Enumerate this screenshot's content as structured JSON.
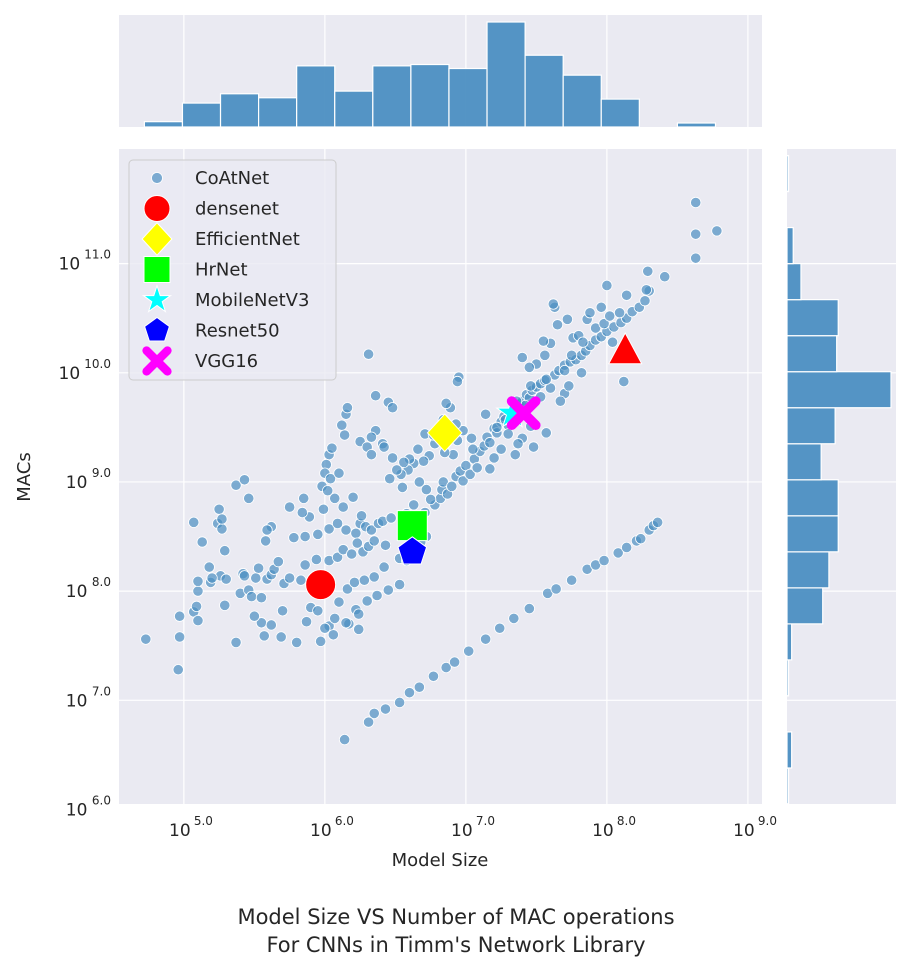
{
  "caption": {
    "line1": "Model Size VS Number of MAC operations",
    "line2": "For CNNs in Timm's Network Library"
  },
  "colors": {
    "background_panel": "#eaeaf2",
    "grid": "#ffffff",
    "scatter": "#4c8fc2",
    "hist": "#4c8fc2"
  },
  "chart_data": {
    "type": "scatter",
    "xlabel": "Model Size",
    "ylabel": "MACs",
    "xscale": "log10",
    "yscale": "log10",
    "xlim_log10": [
      4.54,
      9.1
    ],
    "ylim_log10": [
      6.05,
      12.05
    ],
    "grid": true,
    "legend_position": "upper-left",
    "x_ticks": [
      {
        "value": 5,
        "label": "10",
        "exp": "5.0"
      },
      {
        "value": 6,
        "label": "10",
        "exp": "6.0"
      },
      {
        "value": 7,
        "label": "10",
        "exp": "7.0"
      },
      {
        "value": 8,
        "label": "10",
        "exp": "8.0"
      },
      {
        "value": 9,
        "label": "10",
        "exp": "9.0"
      }
    ],
    "y_ticks": [
      {
        "value": 6,
        "label": "10",
        "exp": "6.0"
      },
      {
        "value": 7,
        "label": "10",
        "exp": "7.0"
      },
      {
        "value": 8,
        "label": "10",
        "exp": "8.0"
      },
      {
        "value": 9,
        "label": "10",
        "exp": "9.0"
      },
      {
        "value": 10,
        "label": "10",
        "exp": "10.0"
      },
      {
        "value": 11,
        "label": "10",
        "exp": "11.0"
      }
    ],
    "highlight_series": [
      {
        "name": "densenet",
        "marker": "circle",
        "color": "#ff0000",
        "log10_x": 5.97,
        "log10_y": 8.06
      },
      {
        "name": "EfficientNet",
        "marker": "diamond",
        "color": "#ffff00",
        "log10_x": 6.85,
        "log10_y": 9.45
      },
      {
        "name": "HrNet",
        "marker": "square",
        "color": "#00ff00",
        "log10_x": 6.62,
        "log10_y": 8.6
      },
      {
        "name": "MobileNetV3",
        "marker": "star",
        "color": "#00ffff",
        "log10_x": 7.33,
        "log10_y": 9.63
      },
      {
        "name": "Resnet50",
        "marker": "pentagon",
        "color": "#0000ff",
        "log10_x": 6.62,
        "log10_y": 8.36
      },
      {
        "name": "VGG16",
        "marker": "x",
        "color": "#ff00ff",
        "log10_x": 7.41,
        "log10_y": 9.63
      },
      {
        "name": "",
        "marker": "triangle",
        "color": "#ff0000",
        "log10_x": 8.13,
        "log10_y": 10.2
      }
    ],
    "legend": [
      "CoAtNet",
      "densenet",
      "EfficientNet",
      "HrNet",
      "MobileNetV3",
      "Resnet50",
      "VGG16"
    ],
    "scatter_series": {
      "name": "CoAtNet",
      "points_log10": [
        [
          4.73,
          7.56
        ],
        [
          4.96,
          7.28
        ],
        [
          4.97,
          7.58
        ],
        [
          4.97,
          7.77
        ],
        [
          5.07,
          7.81
        ],
        [
          5.09,
          7.86
        ],
        [
          5.1,
          7.73
        ],
        [
          5.1,
          8.0
        ],
        [
          5.1,
          8.09
        ],
        [
          5.19,
          8.08
        ],
        [
          5.18,
          8.22
        ],
        [
          5.26,
          8.14
        ],
        [
          5.29,
          7.87
        ],
        [
          5.3,
          8.11
        ],
        [
          5.37,
          7.53
        ],
        [
          5.4,
          7.98
        ],
        [
          5.42,
          8.16
        ],
        [
          5.43,
          8.14
        ],
        [
          5.46,
          8.01
        ],
        [
          5.48,
          7.95
        ],
        [
          5.51,
          8.12
        ],
        [
          5.53,
          8.21
        ],
        [
          5.55,
          7.94
        ],
        [
          5.59,
          8.11
        ],
        [
          5.62,
          8.15
        ],
        [
          5.64,
          8.2
        ],
        [
          5.67,
          8.27
        ],
        [
          5.71,
          8.07
        ],
        [
          5.75,
          8.12
        ],
        [
          5.83,
          8.1
        ],
        [
          5.86,
          8.24
        ],
        [
          5.94,
          8.29
        ],
        [
          5.78,
          8.49
        ],
        [
          5.86,
          8.5
        ],
        [
          5.95,
          8.52
        ],
        [
          6.03,
          8.57
        ],
        [
          6.09,
          8.62
        ],
        [
          6.15,
          8.56
        ],
        [
          6.22,
          8.53
        ],
        [
          6.25,
          8.62
        ],
        [
          6.29,
          8.59
        ],
        [
          6.33,
          8.56
        ],
        [
          6.38,
          8.62
        ],
        [
          6.41,
          8.64
        ],
        [
          6.47,
          8.67
        ],
        [
          6.03,
          8.28
        ],
        [
          6.09,
          8.31
        ],
        [
          6.13,
          8.38
        ],
        [
          6.19,
          8.34
        ],
        [
          6.23,
          8.44
        ],
        [
          6.27,
          8.36
        ],
        [
          6.31,
          8.41
        ],
        [
          6.35,
          8.46
        ],
        [
          6.43,
          8.42
        ],
        [
          6.1,
          7.9
        ],
        [
          6.16,
          8.02
        ],
        [
          6.21,
          8.08
        ],
        [
          6.28,
          8.1
        ],
        [
          6.35,
          8.13
        ],
        [
          6.42,
          8.22
        ],
        [
          6.53,
          8.3
        ],
        [
          6.63,
          8.4
        ],
        [
          6.72,
          8.5
        ],
        [
          5.87,
          7.72
        ],
        [
          5.9,
          7.85
        ],
        [
          6.03,
          7.68
        ],
        [
          6.07,
          7.75
        ],
        [
          6.17,
          7.7
        ],
        [
          6.22,
          7.83
        ],
        [
          6.24,
          7.79
        ],
        [
          6.3,
          7.91
        ],
        [
          6.37,
          7.96
        ],
        [
          6.45,
          8.01
        ],
        [
          6.53,
          8.06
        ],
        [
          6.58,
          8.28
        ],
        [
          6.64,
          8.36
        ],
        [
          6.68,
          8.45
        ],
        [
          6.69,
          8.64
        ],
        [
          6.71,
          8.72
        ],
        [
          6.78,
          8.79
        ],
        [
          6.82,
          8.85
        ],
        [
          6.83,
          8.93
        ],
        [
          6.84,
          9.0
        ],
        [
          6.87,
          8.89
        ],
        [
          6.9,
          8.96
        ],
        [
          6.93,
          9.05
        ],
        [
          6.96,
          9.1
        ],
        [
          6.98,
          9.01
        ],
        [
          7.0,
          9.15
        ],
        [
          7.03,
          9.07
        ],
        [
          7.06,
          9.21
        ],
        [
          7.08,
          9.13
        ],
        [
          7.1,
          9.28
        ],
        [
          7.13,
          9.33
        ],
        [
          7.15,
          9.41
        ],
        [
          7.17,
          9.36
        ],
        [
          7.2,
          9.49
        ],
        [
          7.22,
          9.45
        ],
        [
          7.25,
          9.55
        ],
        [
          7.27,
          9.6
        ],
        [
          7.3,
          9.52
        ],
        [
          7.32,
          9.58
        ],
        [
          7.35,
          9.67
        ],
        [
          7.38,
          9.72
        ],
        [
          7.4,
          9.74
        ],
        [
          7.43,
          9.8
        ],
        [
          7.45,
          9.77
        ],
        [
          7.47,
          9.84
        ],
        [
          7.5,
          9.87
        ],
        [
          7.53,
          9.9
        ],
        [
          7.56,
          9.93
        ],
        [
          7.6,
          9.86
        ],
        [
          7.63,
          9.98
        ],
        [
          7.66,
          10.02
        ],
        [
          7.7,
          10.07
        ],
        [
          7.74,
          10.1
        ],
        [
          7.78,
          10.12
        ],
        [
          7.82,
          10.16
        ],
        [
          7.85,
          10.2
        ],
        [
          7.88,
          10.25
        ],
        [
          7.92,
          10.3
        ],
        [
          7.96,
          10.33
        ],
        [
          8.0,
          10.38
        ],
        [
          8.05,
          10.42
        ],
        [
          8.1,
          10.46
        ],
        [
          8.14,
          10.5
        ],
        [
          8.18,
          10.56
        ],
        [
          8.23,
          10.6
        ],
        [
          8.27,
          10.66
        ],
        [
          8.3,
          10.75
        ],
        [
          8.29,
          10.93
        ],
        [
          8.0,
          10.8
        ],
        [
          7.96,
          10.6
        ],
        [
          8.04,
          10.28
        ],
        [
          8.12,
          9.92
        ],
        [
          7.82,
          10.0
        ],
        [
          7.76,
          10.32
        ],
        [
          7.6,
          10.27
        ],
        [
          7.56,
          10.16
        ],
        [
          7.5,
          10.08
        ],
        [
          7.53,
          9.78
        ],
        [
          7.46,
          9.51
        ],
        [
          7.4,
          9.4
        ],
        [
          7.37,
          9.35
        ],
        [
          7.3,
          9.44
        ],
        [
          7.25,
          9.3
        ],
        [
          7.2,
          9.22
        ],
        [
          7.17,
          9.12
        ],
        [
          7.14,
          9.62
        ],
        [
          7.05,
          9.3
        ],
        [
          7.04,
          9.4
        ],
        [
          6.98,
          9.47
        ],
        [
          6.93,
          9.53
        ],
        [
          6.89,
          9.68
        ],
        [
          6.86,
          9.72
        ],
        [
          6.84,
          9.57
        ],
        [
          6.8,
          9.48
        ],
        [
          6.78,
          9.35
        ],
        [
          6.74,
          9.24
        ],
        [
          6.7,
          9.19
        ],
        [
          6.66,
          9.3
        ],
        [
          6.63,
          9.17
        ],
        [
          6.6,
          9.21
        ],
        [
          6.59,
          9.11
        ],
        [
          6.56,
          9.18
        ],
        [
          6.54,
          9.07
        ],
        [
          6.51,
          9.11
        ],
        [
          6.48,
          9.22
        ],
        [
          6.46,
          9.03
        ],
        [
          6.67,
          9.0
        ],
        [
          6.72,
          8.93
        ],
        [
          6.75,
          8.84
        ],
        [
          6.63,
          8.79
        ],
        [
          6.58,
          8.71
        ],
        [
          6.55,
          8.95
        ],
        [
          6.71,
          9.44
        ],
        [
          6.77,
          9.43
        ],
        [
          6.91,
          9.25
        ],
        [
          6.94,
          9.38
        ],
        [
          6.95,
          9.96
        ],
        [
          6.94,
          9.92
        ],
        [
          6.85,
          9.27
        ],
        [
          6.8,
          9.43
        ],
        [
          6.15,
          9.62
        ],
        [
          6.16,
          9.68
        ],
        [
          6.03,
          9.25
        ],
        [
          6.05,
          9.31
        ],
        [
          6.14,
          9.43
        ],
        [
          6.12,
          9.52
        ],
        [
          6.25,
          9.37
        ],
        [
          6.3,
          9.32
        ],
        [
          6.33,
          9.25
        ],
        [
          6.36,
          9.47
        ],
        [
          6.41,
          9.35
        ],
        [
          6.42,
          9.32
        ],
        [
          6.45,
          9.73
        ],
        [
          6.48,
          9.68
        ],
        [
          6.36,
          9.79
        ],
        [
          6.31,
          10.17
        ],
        [
          6.33,
          9.41
        ],
        [
          6.01,
          9.16
        ],
        [
          6.0,
          9.08
        ],
        [
          6.04,
          9.03
        ],
        [
          6.1,
          9.08
        ],
        [
          5.99,
          8.75
        ],
        [
          6.07,
          8.85
        ],
        [
          6.13,
          8.77
        ],
        [
          6.2,
          8.86
        ],
        [
          6.26,
          8.69
        ],
        [
          5.98,
          8.96
        ],
        [
          6.02,
          8.92
        ],
        [
          5.85,
          8.85
        ],
        [
          5.89,
          8.68
        ],
        [
          5.84,
          8.72
        ],
        [
          5.75,
          8.77
        ],
        [
          5.62,
          8.59
        ],
        [
          5.59,
          8.56
        ],
        [
          5.58,
          8.46
        ],
        [
          5.46,
          8.85
        ],
        [
          5.37,
          8.97
        ],
        [
          5.43,
          9.02
        ],
        [
          5.24,
          8.62
        ],
        [
          5.27,
          8.57
        ],
        [
          5.25,
          8.75
        ],
        [
          5.27,
          8.66
        ],
        [
          5.07,
          8.63
        ],
        [
          5.13,
          8.45
        ],
        [
          5.2,
          8.12
        ],
        [
          5.29,
          8.37
        ],
        [
          7.4,
          10.14
        ],
        [
          7.45,
          10.05
        ],
        [
          7.55,
          10.29
        ],
        [
          7.65,
          10.44
        ],
        [
          7.72,
          10.49
        ],
        [
          7.75,
          10.16
        ],
        [
          7.8,
          10.34
        ],
        [
          7.83,
          10.28
        ],
        [
          7.86,
          10.49
        ],
        [
          7.88,
          10.55
        ],
        [
          7.92,
          10.41
        ],
        [
          7.98,
          10.45
        ],
        [
          8.02,
          10.52
        ],
        [
          8.09,
          10.55
        ],
        [
          8.14,
          10.71
        ],
        [
          8.28,
          10.76
        ],
        [
          8.41,
          10.88
        ],
        [
          7.63,
          10.6
        ],
        [
          7.62,
          10.63
        ],
        [
          7.7,
          10.02
        ],
        [
          7.46,
          9.88
        ],
        [
          7.28,
          9.57
        ],
        [
          7.22,
          9.5
        ],
        [
          7.35,
          9.25
        ],
        [
          7.48,
          9.32
        ],
        [
          7.57,
          9.45
        ],
        [
          7.42,
          9.7
        ],
        [
          7.36,
          9.74
        ],
        [
          7.7,
          9.81
        ],
        [
          7.73,
          9.88
        ],
        [
          7.67,
          9.74
        ],
        [
          7.57,
          9.94
        ],
        [
          8.63,
          11.27
        ],
        [
          8.78,
          11.3
        ],
        [
          8.63,
          11.05
        ],
        [
          8.63,
          11.56
        ],
        [
          5.95,
          7.82
        ],
        [
          6.0,
          7.66
        ],
        [
          6.06,
          7.6
        ],
        [
          6.15,
          7.71
        ],
        [
          6.24,
          7.65
        ],
        [
          5.8,
          7.53
        ],
        [
          5.97,
          7.54
        ],
        [
          5.7,
          7.82
        ],
        [
          5.69,
          7.58
        ],
        [
          5.55,
          7.71
        ],
        [
          5.62,
          7.69
        ],
        [
          5.5,
          7.77
        ],
        [
          5.57,
          7.59
        ],
        [
          6.14,
          6.64
        ],
        [
          6.31,
          6.8
        ],
        [
          6.35,
          6.88
        ],
        [
          6.43,
          6.92
        ],
        [
          6.53,
          6.98
        ],
        [
          6.6,
          7.07
        ],
        [
          6.67,
          7.12
        ],
        [
          6.77,
          7.22
        ],
        [
          6.86,
          7.3
        ],
        [
          6.92,
          7.35
        ],
        [
          7.02,
          7.45
        ],
        [
          7.14,
          7.56
        ],
        [
          7.24,
          7.66
        ],
        [
          7.34,
          7.75
        ],
        [
          7.45,
          7.84
        ],
        [
          7.58,
          7.98
        ],
        [
          7.64,
          8.02
        ],
        [
          7.75,
          8.1
        ],
        [
          7.86,
          8.2
        ],
        [
          7.92,
          8.24
        ],
        [
          7.98,
          8.28
        ],
        [
          8.08,
          8.35
        ],
        [
          8.14,
          8.4
        ],
        [
          8.21,
          8.46
        ],
        [
          8.24,
          8.48
        ],
        [
          8.3,
          8.56
        ],
        [
          8.33,
          8.6
        ],
        [
          8.36,
          8.63
        ]
      ]
    },
    "top_histogram": {
      "bin_edges_log10": [
        4.72,
        4.99,
        5.26,
        5.53,
        5.8,
        6.07,
        6.34,
        6.61,
        6.88,
        7.15,
        7.42,
        7.69,
        7.96,
        8.23,
        8.5,
        8.77
      ],
      "counts": [
        4,
        18,
        25,
        22,
        46,
        27,
        46,
        47,
        44,
        79,
        54,
        39,
        21,
        0,
        3
      ]
    },
    "right_histogram": {
      "bin_edges_log10": [
        6.05,
        6.38,
        6.71,
        7.04,
        7.37,
        7.7,
        8.03,
        8.36,
        8.69,
        9.02,
        9.35,
        9.68,
        10.01,
        10.34,
        10.67,
        11.0,
        11.33,
        11.66,
        11.99
      ],
      "counts": [
        1,
        3,
        0,
        1,
        3,
        23,
        27,
        33,
        33,
        22,
        31,
        67,
        32,
        33,
        9,
        4,
        0,
        1
      ]
    }
  }
}
